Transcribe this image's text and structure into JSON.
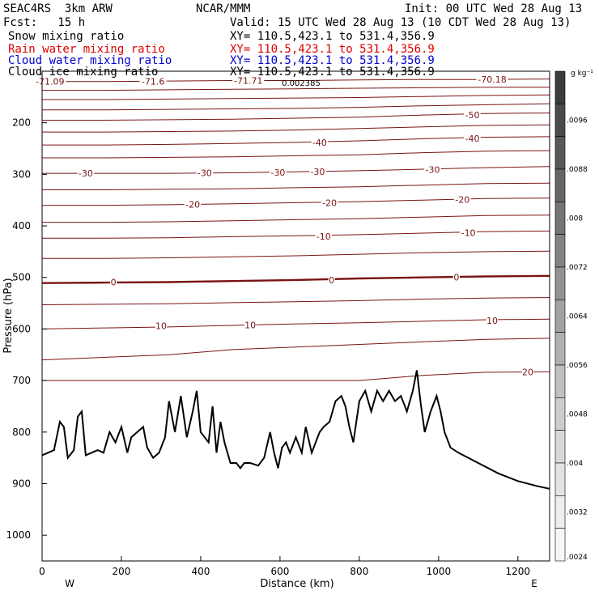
{
  "header": {
    "model": "SEAC4RS  3km ARW",
    "forecast": "Fcst:   15 h",
    "center": "NCAR/MMM",
    "init": "Init: 00 UTC Wed 28 Aug 13",
    "valid": "Valid: 15 UTC Wed 28 Aug 13 (10 CDT Wed 28 Aug 13)"
  },
  "fields": [
    {
      "name": "Snow mixing ratio",
      "xy": "XY= 110.5,423.1 to 531.4,356.9",
      "color": "#000000"
    },
    {
      "name": "Rain water mixing ratio",
      "xy": "XY= 110.5,423.1 to 531.4,356.9",
      "color": "#e00000"
    },
    {
      "name": "Cloud water mixing ratio",
      "xy": "XY= 110.5,423.1 to 531.4,356.9",
      "color": "#0000d0"
    },
    {
      "name": "Cloud ice mixing ratio",
      "xy": "XY= 110.5,423.1 to 531.4,356.9",
      "color": "#000000"
    }
  ],
  "colors": {
    "isotherm": "#7a1414",
    "terrain": "#000000"
  },
  "chart_data": {
    "type": "line",
    "xlabel": "Distance (km)",
    "ylabel": "Pressure (hPa)",
    "xlim": [
      0,
      1280
    ],
    "ylim": [
      1050,
      100
    ],
    "x_ticks": [
      0,
      200,
      400,
      600,
      800,
      1000,
      1200
    ],
    "y_ticks": [
      200,
      300,
      400,
      500,
      600,
      700,
      800,
      900,
      1000
    ],
    "x_end_labels": {
      "left": "W",
      "right": "E"
    },
    "grid": false,
    "isotherms": [
      {
        "value": -70,
        "p": [
          120,
          120,
          119,
          118,
          118,
          117,
          116,
          116,
          115
        ]
      },
      {
        "value": -65,
        "p": [
          137,
          137,
          136,
          135,
          134,
          133,
          132,
          131,
          131
        ]
      },
      {
        "value": -60,
        "p": [
          155,
          155,
          154,
          153,
          152,
          151,
          149,
          147,
          146
        ]
      },
      {
        "value": -55,
        "p": [
          175,
          175,
          174,
          173,
          172,
          170,
          167,
          165,
          163
        ]
      },
      {
        "value": -50,
        "p": [
          195,
          195,
          194,
          193,
          191,
          189,
          185,
          182,
          181
        ]
      },
      {
        "value": -45,
        "p": [
          218,
          218,
          217,
          216,
          214,
          211,
          208,
          205,
          204
        ]
      },
      {
        "value": -40,
        "p": [
          243,
          243,
          242,
          240,
          238,
          235,
          231,
          228,
          227
        ]
      },
      {
        "value": -35,
        "p": [
          268,
          268,
          267,
          266,
          264,
          262,
          258,
          255,
          254
        ]
      },
      {
        "value": -30,
        "p": [
          298,
          298,
          298,
          297,
          295,
          293,
          290,
          287,
          285
        ]
      },
      {
        "value": -25,
        "p": [
          330,
          330,
          329,
          328,
          326,
          324,
          321,
          318,
          317
        ]
      },
      {
        "value": -20,
        "p": [
          360,
          360,
          359,
          357,
          355,
          353,
          350,
          347,
          346
        ]
      },
      {
        "value": -15,
        "p": [
          393,
          393,
          392,
          390,
          388,
          386,
          383,
          380,
          379
        ]
      },
      {
        "value": -10,
        "p": [
          424,
          424,
          423,
          421,
          419,
          417,
          414,
          411,
          410
        ]
      },
      {
        "value": -5,
        "p": [
          463,
          463,
          462,
          460,
          458,
          455,
          452,
          450,
          449
        ]
      },
      {
        "value": 0,
        "p": [
          511,
          510,
          509,
          507,
          505,
          502,
          500,
          498,
          497
        ]
      },
      {
        "value": 5,
        "p": [
          553,
          552,
          551,
          549,
          547,
          545,
          542,
          540,
          539
        ]
      },
      {
        "value": 10,
        "p": [
          600,
          598,
          596,
          593,
          590,
          588,
          585,
          582,
          581
        ]
      },
      {
        "value": 15,
        "p": [
          660,
          655,
          650,
          640,
          635,
          630,
          625,
          620,
          618
        ]
      },
      {
        "value": 20,
        "p": [
          700,
          700,
          700,
          700,
          700,
          700,
          690,
          684,
          683
        ]
      }
    ],
    "isotherm_labels": [
      {
        "text": "-71.09",
        "x": 20,
        "p": 120
      },
      {
        "text": "-71.6",
        "x": 280,
        "p": 120
      },
      {
        "text": "-71.71",
        "x": 520,
        "p": 118
      },
      {
        "text": "-70.18",
        "x": 1135,
        "p": 116
      },
      {
        "text": "-50",
        "x": 1085,
        "p": 185
      },
      {
        "text": "-40",
        "x": 700,
        "p": 238
      },
      {
        "text": "-40",
        "x": 1085,
        "p": 230
      },
      {
        "text": "-30",
        "x": 110,
        "p": 298
      },
      {
        "text": "-30",
        "x": 410,
        "p": 297
      },
      {
        "text": "-30",
        "x": 595,
        "p": 296
      },
      {
        "text": "-30",
        "x": 695,
        "p": 295
      },
      {
        "text": "-30",
        "x": 985,
        "p": 291
      },
      {
        "text": "-20",
        "x": 380,
        "p": 358
      },
      {
        "text": "-20",
        "x": 725,
        "p": 355
      },
      {
        "text": "-20",
        "x": 1060,
        "p": 349
      },
      {
        "text": "-10",
        "x": 710,
        "p": 420
      },
      {
        "text": "-10",
        "x": 1075,
        "p": 413
      },
      {
        "text": "0",
        "x": 180,
        "p": 509
      },
      {
        "text": "0",
        "x": 730,
        "p": 505
      },
      {
        "text": "0",
        "x": 1045,
        "p": 500
      },
      {
        "text": "10",
        "x": 300,
        "p": 594
      },
      {
        "text": "10",
        "x": 525,
        "p": 592
      },
      {
        "text": "10",
        "x": 1135,
        "p": 584
      },
      {
        "text": "20",
        "x": 1225,
        "p": 683
      }
    ],
    "terrain": {
      "x": [
        0,
        15,
        30,
        45,
        55,
        65,
        80,
        90,
        100,
        110,
        125,
        140,
        155,
        170,
        185,
        200,
        215,
        225,
        240,
        255,
        265,
        280,
        295,
        310,
        320,
        335,
        350,
        365,
        380,
        390,
        400,
        410,
        420,
        430,
        440,
        450,
        460,
        475,
        490,
        500,
        510,
        525,
        545,
        560,
        575,
        585,
        595,
        605,
        615,
        625,
        640,
        655,
        665,
        680,
        690,
        700,
        710,
        725,
        740,
        755,
        765,
        775,
        785,
        800,
        815,
        830,
        845,
        860,
        875,
        890,
        905,
        920,
        935,
        945,
        955,
        965,
        980,
        995,
        1005,
        1015,
        1030,
        1050,
        1100,
        1150,
        1200,
        1250,
        1280
      ],
      "p": [
        845,
        840,
        835,
        780,
        790,
        850,
        835,
        770,
        760,
        845,
        840,
        835,
        840,
        800,
        820,
        790,
        840,
        810,
        800,
        790,
        830,
        850,
        840,
        810,
        740,
        800,
        730,
        810,
        760,
        720,
        800,
        810,
        820,
        750,
        840,
        780,
        820,
        860,
        860,
        870,
        860,
        860,
        865,
        850,
        800,
        840,
        870,
        830,
        820,
        840,
        810,
        840,
        790,
        840,
        820,
        800,
        790,
        780,
        740,
        730,
        750,
        790,
        820,
        740,
        720,
        760,
        720,
        740,
        720,
        740,
        730,
        760,
        720,
        680,
        745,
        800,
        760,
        730,
        760,
        800,
        830,
        840,
        860,
        880,
        895,
        905,
        910
      ]
    },
    "colorbar": {
      "unit_label": "g kg⁻¹",
      "ticks": [
        ".0096",
        ".0088",
        ".008",
        ".0072",
        ".0064",
        ".0056",
        ".0048",
        ".004",
        ".0032",
        ".0024"
      ],
      "top_unlabeled_value": ".0104",
      "bottom_unlabeled_value": ".0016",
      "colors": [
        "#3c3c3c",
        "#4a4a4a",
        "#585858",
        "#666666",
        "#747474",
        "#838383",
        "#929292",
        "#a1a1a1",
        "#b0b0b0",
        "#bfbfbf",
        "#cccccc",
        "#d8d8d8",
        "#e3e3e3",
        "#eeeeee",
        "#f7f7f7"
      ]
    },
    "inline_annotation": "0.002385"
  }
}
